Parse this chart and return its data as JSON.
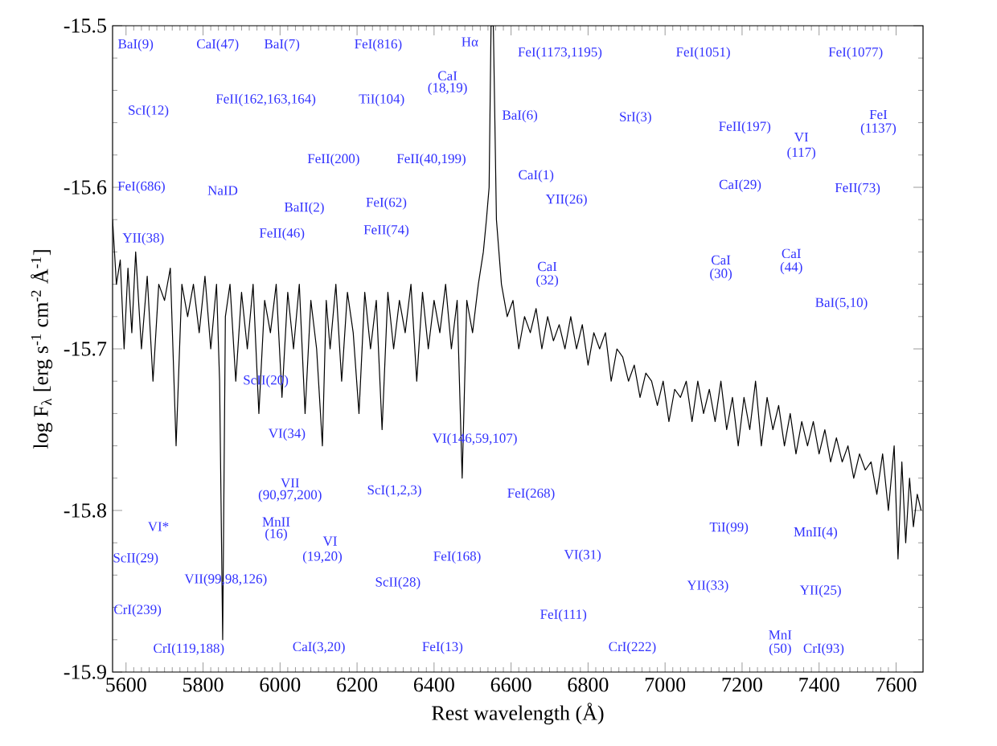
{
  "chart_data": {
    "type": "line",
    "xlabel": "Rest wavelength (Å)",
    "ylabel": "log F$_{λ}$ [erg s$^{-1}$ cm$^{-2}$ Å$^{-1}$]",
    "xlim": [
      5565,
      7670
    ],
    "ylim": [
      -15.9,
      -15.5
    ],
    "xticks": [
      5600,
      5800,
      6000,
      6200,
      6400,
      6600,
      6800,
      7000,
      7200,
      7400,
      7600
    ],
    "yticks": [
      -15.9,
      -15.8,
      -15.7,
      -15.6,
      -15.5
    ],
    "series": [
      {
        "color": "#000000",
        "x": [
          5565,
          5575,
          5585,
          5595,
          5605,
          5615,
          5625,
          5640,
          5655,
          5670,
          5685,
          5700,
          5715,
          5730,
          5745,
          5760,
          5775,
          5790,
          5805,
          5820,
          5835,
          5843,
          5851,
          5858,
          5870,
          5885,
          5900,
          5915,
          5930,
          5945,
          5960,
          5975,
          5990,
          6005,
          6020,
          6035,
          6050,
          6065,
          6080,
          6095,
          6110,
          6120,
          6130,
          6145,
          6160,
          6175,
          6190,
          6205,
          6220,
          6235,
          6250,
          6265,
          6280,
          6295,
          6310,
          6325,
          6340,
          6355,
          6370,
          6385,
          6400,
          6415,
          6430,
          6445,
          6460,
          6473,
          6485,
          6500,
          6515,
          6528,
          6536,
          6543,
          6548,
          6554,
          6562,
          6575,
          6590,
          6605,
          6620,
          6635,
          6650,
          6665,
          6680,
          6695,
          6710,
          6725,
          6740,
          6755,
          6770,
          6785,
          6800,
          6815,
          6830,
          6845,
          6860,
          6875,
          6890,
          6905,
          6920,
          6935,
          6950,
          6965,
          6980,
          6995,
          7010,
          7025,
          7040,
          7055,
          7070,
          7085,
          7100,
          7115,
          7130,
          7145,
          7160,
          7175,
          7190,
          7205,
          7220,
          7235,
          7250,
          7265,
          7280,
          7295,
          7310,
          7325,
          7340,
          7355,
          7370,
          7385,
          7400,
          7415,
          7430,
          7445,
          7460,
          7475,
          7490,
          7505,
          7520,
          7535,
          7550,
          7565,
          7580,
          7595,
          7605,
          7615,
          7625,
          7635,
          7645,
          7655,
          7665
        ],
        "values": [
          -15.62,
          -15.66,
          -15.645,
          -15.7,
          -15.65,
          -15.69,
          -15.64,
          -15.7,
          -15.655,
          -15.72,
          -15.66,
          -15.67,
          -15.65,
          -15.76,
          -15.66,
          -15.68,
          -15.66,
          -15.69,
          -15.655,
          -15.7,
          -15.66,
          -15.72,
          -15.88,
          -15.68,
          -15.66,
          -15.72,
          -15.665,
          -15.7,
          -15.66,
          -15.74,
          -15.67,
          -15.69,
          -15.66,
          -15.73,
          -15.665,
          -15.7,
          -15.66,
          -15.74,
          -15.67,
          -15.7,
          -15.76,
          -15.67,
          -15.7,
          -15.66,
          -15.72,
          -15.665,
          -15.69,
          -15.74,
          -15.665,
          -15.7,
          -15.67,
          -15.75,
          -15.665,
          -15.7,
          -15.67,
          -15.69,
          -15.66,
          -15.72,
          -15.665,
          -15.7,
          -15.67,
          -15.69,
          -15.66,
          -15.7,
          -15.67,
          -15.78,
          -15.67,
          -15.69,
          -15.66,
          -15.64,
          -15.62,
          -15.6,
          -15.5,
          -15.5,
          -15.62,
          -15.66,
          -15.68,
          -15.67,
          -15.7,
          -15.68,
          -15.69,
          -15.675,
          -15.7,
          -15.68,
          -15.695,
          -15.685,
          -15.7,
          -15.68,
          -15.7,
          -15.685,
          -15.71,
          -15.69,
          -15.7,
          -15.69,
          -15.72,
          -15.7,
          -15.705,
          -15.72,
          -15.71,
          -15.73,
          -15.715,
          -15.72,
          -15.735,
          -15.72,
          -15.745,
          -15.725,
          -15.73,
          -15.72,
          -15.745,
          -15.72,
          -15.74,
          -15.725,
          -15.745,
          -15.72,
          -15.75,
          -15.73,
          -15.76,
          -15.73,
          -15.75,
          -15.72,
          -15.76,
          -15.73,
          -15.75,
          -15.735,
          -15.76,
          -15.74,
          -15.765,
          -15.745,
          -15.76,
          -15.745,
          -15.765,
          -15.75,
          -15.77,
          -15.755,
          -15.77,
          -15.76,
          -15.78,
          -15.765,
          -15.775,
          -15.77,
          -15.79,
          -15.765,
          -15.8,
          -15.76,
          -15.83,
          -15.77,
          -15.82,
          -15.78,
          -15.81,
          -15.79,
          -15.8
        ]
      }
    ],
    "annotations": [
      "BaI(9)",
      "CaI(47)",
      "BaI(7)",
      "FeI(816)",
      "Hα",
      "FeI(1173,1195)",
      "FeI(1051)",
      "FeI(1077)",
      "CaI",
      "(18,19)",
      "ScI(12)",
      "FeII(162,163,164)",
      "TiI(104)",
      "BaI(6)",
      "SrI(3)",
      "FeII(197)",
      "VI",
      "(117)",
      "FeI",
      "(1137)",
      "FeII(200)",
      "FeII(40,199)",
      "CaI(1)",
      "CaI(29)",
      "FeII(73)",
      "FeI(686)",
      "NaID",
      "BaII(2)",
      "FeI(62)",
      "YII(26)",
      "YII(38)",
      "FeII(46)",
      "FeII(74)",
      "CaI",
      "(32)",
      "CaI",
      "(30)",
      "CaI",
      "(44)",
      "BaI(5,10)",
      "ScII(20)",
      "VI(34)",
      "VI(146,59,107)",
      "VII",
      "(90,97,200)",
      "ScI(1,2,3)",
      "FeI(268)",
      "VI*",
      "MnII",
      "(16)",
      "VI",
      "(19,20)",
      "FeI(168)",
      "VI(31)",
      "TiI(99)",
      "MnII(4)",
      "ScII(29)",
      "VII(99,98,126)",
      "ScII(28)",
      "YII(33)",
      "YII(25)",
      "CrI(239)",
      "FeI(111)",
      "CaI(3,20)",
      "FeI(13)",
      "CrI(119,188)",
      "CrI(222)",
      "MnI",
      "(50)",
      "CrI(93)"
    ]
  }
}
